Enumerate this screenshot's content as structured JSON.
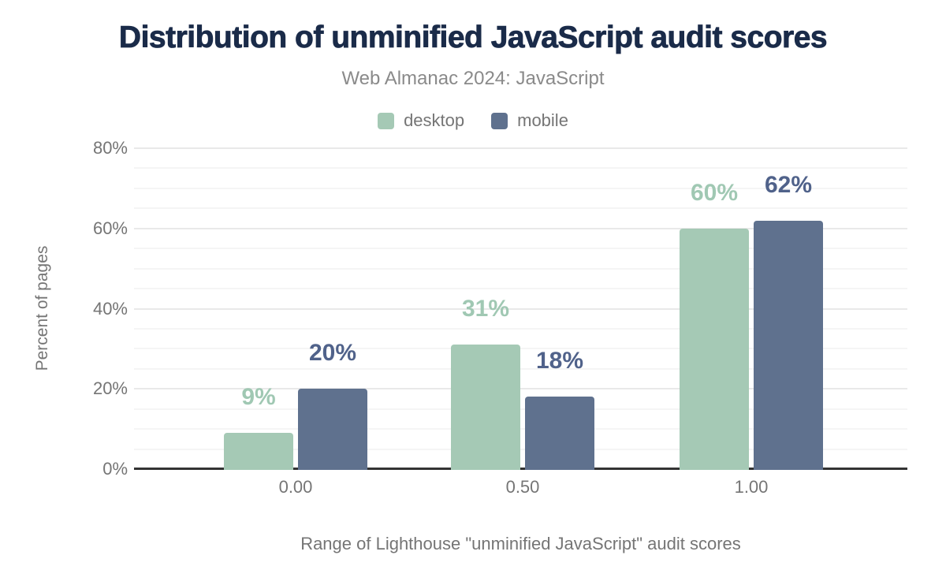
{
  "chart_data": {
    "type": "bar",
    "title": "Distribution of unminified JavaScript audit scores",
    "subtitle": "Web Almanac 2024: JavaScript",
    "xlabel": "Range of Lighthouse \"unminified JavaScript\" audit scores",
    "ylabel": "Percent of pages",
    "categories": [
      "0.00",
      "0.50",
      "1.00"
    ],
    "series": [
      {
        "name": "desktop",
        "values": [
          9,
          31,
          60
        ],
        "labels": [
          "9%",
          "31%",
          "60%"
        ],
        "color": "#a5c9b5",
        "label_color": "#a0c8b3"
      },
      {
        "name": "mobile",
        "values": [
          20,
          18,
          62
        ],
        "labels": [
          "20%",
          "18%",
          "62%"
        ],
        "color": "#5f718e",
        "label_color": "#50628a"
      }
    ],
    "y_ticks": [
      "0%",
      "20%",
      "40%",
      "60%",
      "80%"
    ],
    "y_tick_values": [
      0,
      20,
      40,
      60,
      80
    ],
    "ylim": [
      0,
      80
    ],
    "grid": "major+minor",
    "legend_position": "top"
  },
  "colors": {
    "title": "#1a2b49",
    "subtitle": "#8a8a8a",
    "axis_text": "#757575",
    "axis_line": "#333333",
    "grid_major": "#e9e9e9",
    "grid_minor": "#f5f5f5",
    "background": "#ffffff"
  }
}
